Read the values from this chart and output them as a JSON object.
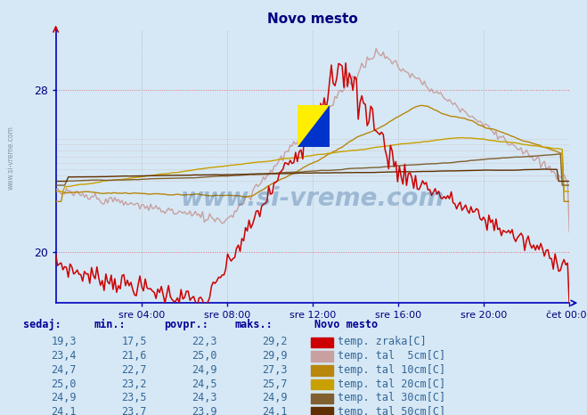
{
  "title": "Novo mesto",
  "title_color": "#000080",
  "bg_color": "#d6e8f5",
  "plot_bg_color": "#d6e8f5",
  "ylim_min": 17.5,
  "ylim_max": 31.0,
  "ytick_vals": [
    20,
    28
  ],
  "ytick_labels": [
    "20",
    "28"
  ],
  "xlabel_ticks": [
    "sre 04:00",
    "sre 08:00",
    "sre 12:00",
    "sre 16:00",
    "sre 20:00",
    "čet 00:00"
  ],
  "grid_h_color": "#e07070",
  "grid_v_color": "#b0b0b0",
  "series_colors": [
    "#cc0000",
    "#c8a0a0",
    "#b8860b",
    "#c8a000",
    "#806030",
    "#603000"
  ],
  "series_names": [
    "temp. zraka[C]",
    "temp. tal  5cm[C]",
    "temp. tal 10cm[C]",
    "temp. tal 20cm[C]",
    "temp. tal 30cm[C]",
    "temp. tal 50cm[C]"
  ],
  "legend_colors": [
    "#cc0000",
    "#c8a0a0",
    "#b8860b",
    "#c8a000",
    "#806030",
    "#603000"
  ],
  "watermark": "www.si-vreme.com",
  "n_points": 288,
  "sedaj_label": "sedaj:",
  "min_label": "min.:",
  "povpr_label": "povpr.:",
  "maks_label": "maks.:",
  "table_data": [
    {
      "sedaj": "19,3",
      "min": "17,5",
      "povpr": "22,3",
      "maks": "29,2"
    },
    {
      "sedaj": "23,4",
      "min": "21,6",
      "povpr": "25,0",
      "maks": "29,9"
    },
    {
      "sedaj": "24,7",
      "min": "22,7",
      "povpr": "24,9",
      "maks": "27,3"
    },
    {
      "sedaj": "25,0",
      "min": "23,2",
      "povpr": "24,5",
      "maks": "25,7"
    },
    {
      "sedaj": "24,9",
      "min": "23,5",
      "povpr": "24,3",
      "maks": "24,9"
    },
    {
      "sedaj": "24,1",
      "min": "23,7",
      "povpr": "23,9",
      "maks": "24,1"
    }
  ]
}
